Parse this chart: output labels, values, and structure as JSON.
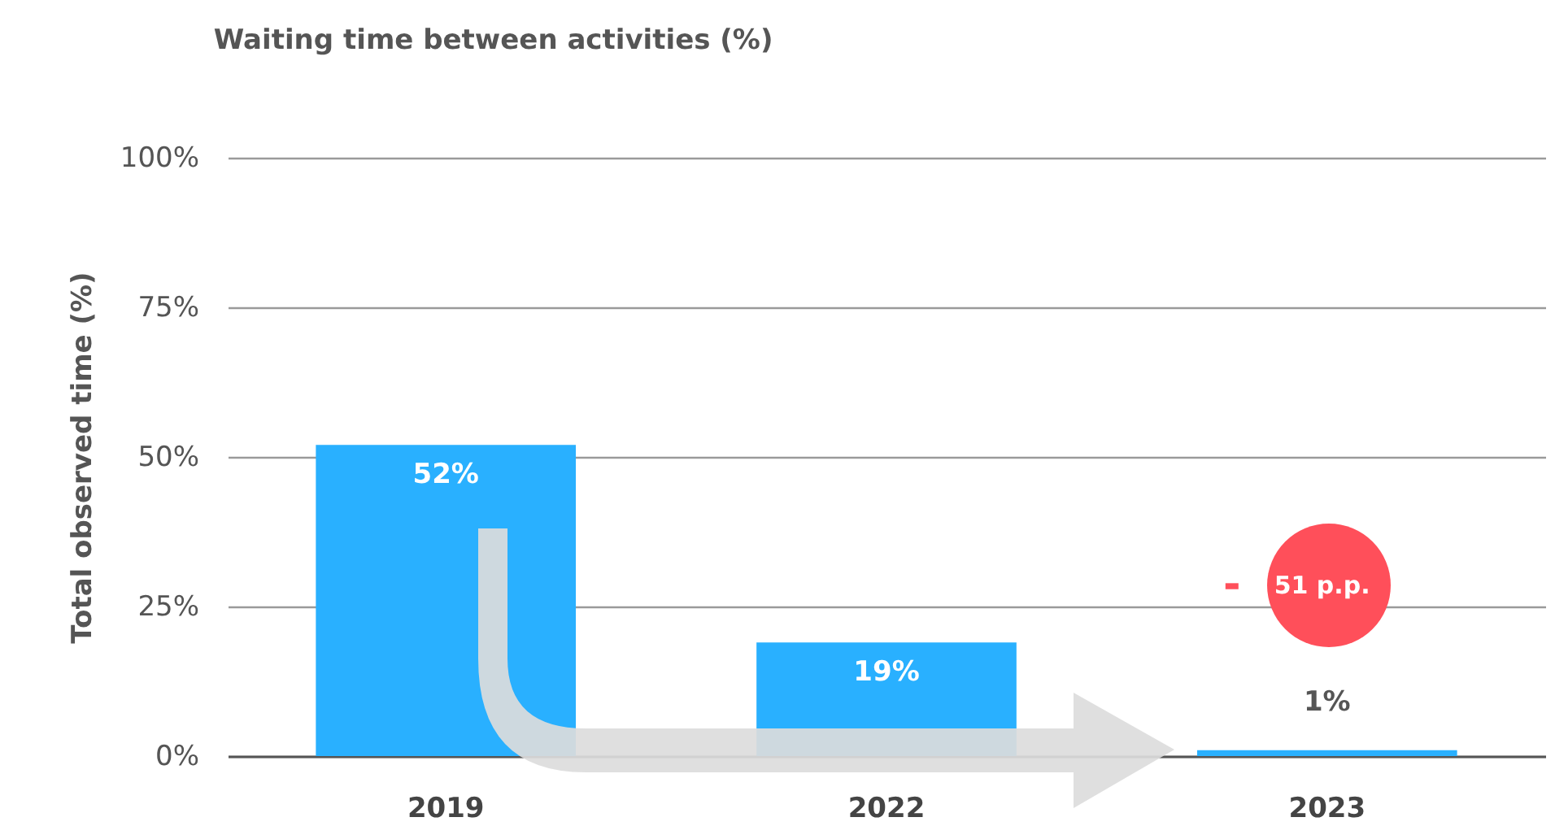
{
  "chart_data": {
    "type": "bar",
    "title": "Waiting time between activities (%)",
    "ylabel": "Total observed time (%)",
    "categories": [
      "2019",
      "2022",
      "2023"
    ],
    "values": [
      52,
      19,
      1
    ],
    "color": "#29b0ff",
    "ylim": [
      0,
      100
    ],
    "yticks": [
      {
        "value": 0,
        "label": "0%"
      },
      {
        "value": 25,
        "label": "25%"
      },
      {
        "value": 50,
        "label": "50%"
      },
      {
        "value": 75,
        "label": "75%"
      },
      {
        "value": 100,
        "label": "100%"
      }
    ],
    "grid": "y",
    "value_labels": [
      "52%",
      "19%",
      "1%"
    ],
    "annotations": [
      "- 51 p.p."
    ]
  }
}
